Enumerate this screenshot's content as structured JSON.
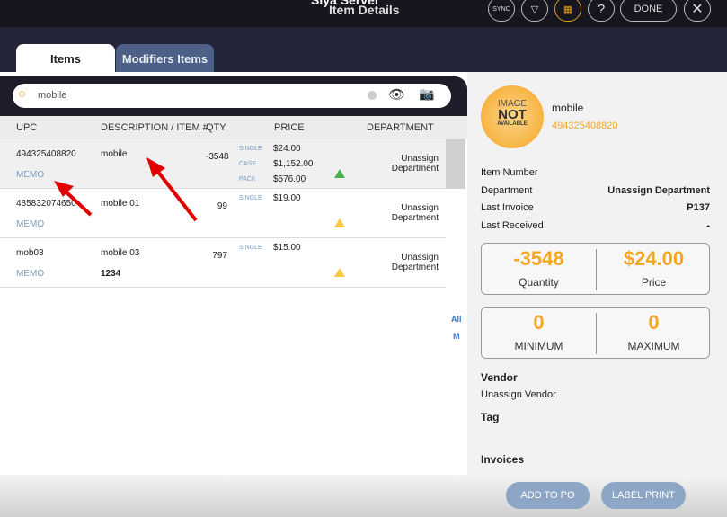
{
  "header": {
    "app_title": "Siya Server",
    "title": "Item Details",
    "sync": "SYNC",
    "done": "DONE"
  },
  "tabs": [
    {
      "label": "Items",
      "active": true
    },
    {
      "label": "Modifiers Items",
      "active": false
    }
  ],
  "search": {
    "value": "mobile"
  },
  "table": {
    "columns": [
      "UPC",
      "DESCRIPTION / ITEM #",
      "QTY",
      "PRICE",
      "DEPARTMENT"
    ],
    "rows": [
      {
        "upc": "494325408820",
        "memo": "MEMO",
        "desc": "mobile",
        "item_no": "",
        "qty": "-3548",
        "prices": [
          [
            "SINGLE",
            "$24.00"
          ],
          [
            "CASE",
            "$1,152.00"
          ],
          [
            "PACK",
            "$576.00"
          ]
        ],
        "dept": "Unassign Department",
        "indicator": "green"
      },
      {
        "upc": "485832074650",
        "memo": "MEMO",
        "desc": "mobile 01",
        "item_no": "",
        "qty": "99",
        "prices": [
          [
            "SINGLE",
            "$19.00"
          ]
        ],
        "dept": "Unassign Department",
        "indicator": "yellow"
      },
      {
        "upc": "mob03",
        "memo": "MEMO",
        "desc": "mobile 03",
        "item_no": "1234",
        "qty": "797",
        "prices": [
          [
            "SINGLE",
            "$15.00"
          ]
        ],
        "dept": "Unassign Department",
        "indicator": "yellow"
      }
    ]
  },
  "index": [
    "All",
    "M"
  ],
  "detail": {
    "image_text": [
      "IMAGE",
      "NOT",
      "AVAILABLE"
    ],
    "name": "mobile",
    "upc": "494325408820",
    "fields": [
      [
        "Item Number",
        ""
      ],
      [
        "Department",
        "Unassign Department"
      ],
      [
        "Last Invoice",
        "P137"
      ],
      [
        "Last Received",
        "-"
      ]
    ],
    "quantity": "-3548",
    "quantity_label": "Quantity",
    "price": "$24.00",
    "price_label": "Price",
    "minimum": "0",
    "minimum_label": "MINIMUM",
    "maximum": "0",
    "maximum_label": "MAXIMUM",
    "vendor_label": "Vendor",
    "vendor": "Unassign Vendor",
    "tag_label": "Tag",
    "invoices_label": "Invoices"
  },
  "footer": {
    "add_to_po": "ADD TO PO",
    "label_print": "LABEL PRINT"
  },
  "colors": {
    "accent": "#f5a623",
    "memo": "#7a9cc0",
    "button": "#8ea6c6",
    "green": "#4caf50",
    "yellow": "#f8c840",
    "annotation": "#e00000"
  }
}
